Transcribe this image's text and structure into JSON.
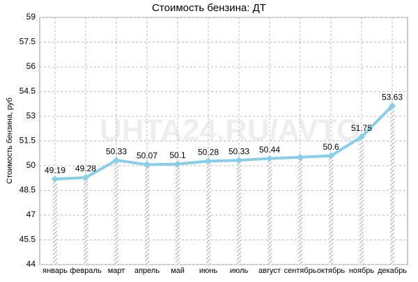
{
  "chart_data": {
    "type": "line",
    "title": "Стоимость бензина: ДТ",
    "y_label": "Стоимость бензина, руб",
    "watermark": "UHTA24.RU/AVTO",
    "categories": [
      "январь",
      "февраль",
      "март",
      "апрель",
      "май",
      "июнь",
      "июль",
      "август",
      "сентябрь",
      "октябрь",
      "ноябрь",
      "декабрь"
    ],
    "series": [
      {
        "name": "ДТ",
        "color": "#87ceeb",
        "values": [
          49.19,
          49.28,
          50.33,
          50.07,
          50.1,
          50.28,
          50.33,
          50.44,
          50.52,
          50.6,
          51.75,
          53.63
        ],
        "value_labels": [
          "49.19",
          "49.28",
          "50.33",
          "50.07",
          "50.1",
          "50.28",
          "50.33",
          "50.44",
          null,
          "50.6",
          "51.75",
          "53.63"
        ]
      }
    ],
    "ylim": [
      44,
      59
    ],
    "yticks": [
      44,
      45.5,
      47,
      48.5,
      50,
      51.5,
      53,
      54.5,
      56,
      57.5,
      59
    ],
    "grid": true
  }
}
